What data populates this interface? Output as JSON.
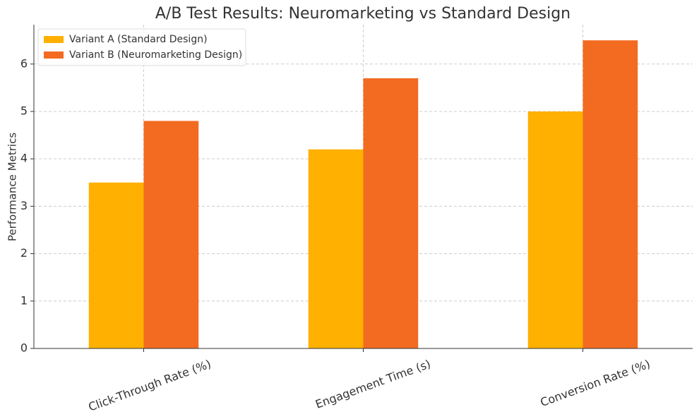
{
  "chart_data": {
    "type": "bar",
    "title": "A/B Test Results: Neuromarketing vs Standard Design",
    "y_label": "Performance Metrics",
    "categories": [
      "Click-Through Rate (%)",
      "Engagement Time (s)",
      "Conversion Rate (%)"
    ],
    "series": [
      {
        "name": "Variant A (Standard Design)",
        "color": "#ffb000",
        "values": [
          3.5,
          4.2,
          5.0
        ]
      },
      {
        "name": "Variant B (Neuromarketing Design)",
        "color": "#f26b21",
        "values": [
          4.8,
          5.7,
          6.5
        ]
      }
    ],
    "ylim": [
      0,
      6.83
    ],
    "yticks": [
      0,
      1,
      2,
      3,
      4,
      5,
      6
    ],
    "grid": true,
    "legend": "upper-left"
  }
}
